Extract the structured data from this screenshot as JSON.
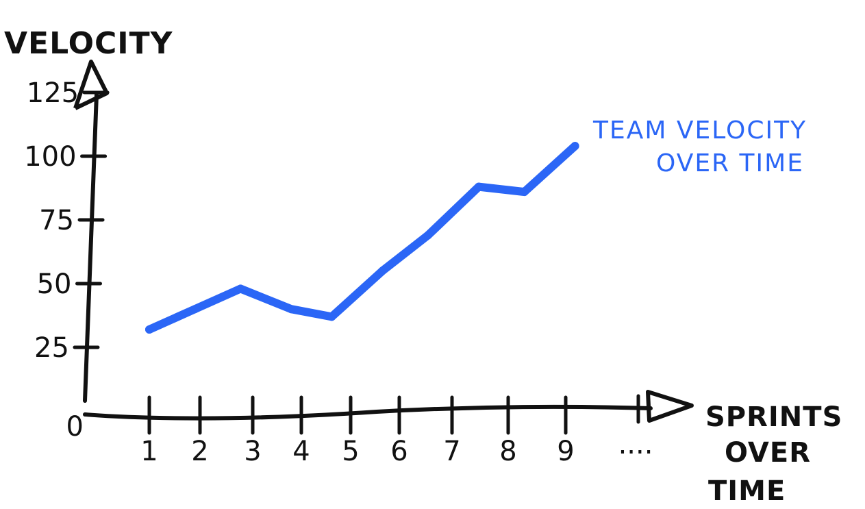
{
  "chart_data": {
    "type": "line",
    "title": "",
    "ylabel": "VELOCITY",
    "xlabel_lines": [
      "SPRINTS",
      "OVER",
      "TIME"
    ],
    "x": [
      1,
      1.9,
      2.8,
      3.8,
      4.6,
      5.6,
      6.5,
      7.5,
      8.4,
      9.4
    ],
    "x_tick_labels": [
      "1",
      "2",
      "3",
      "4",
      "5",
      "6",
      "7",
      "8",
      "9",
      "...."
    ],
    "y_tick_values": [
      0,
      25,
      50,
      75,
      100,
      125
    ],
    "y_tick_labels": [
      "0",
      "25",
      "50",
      "75",
      "100",
      "125"
    ],
    "ylim": [
      0,
      130
    ],
    "series": [
      {
        "values": [
          32,
          40,
          48,
          40,
          37,
          55,
          69,
          88,
          86,
          104
        ],
        "color": "#2b66f6"
      }
    ],
    "annotation_lines": [
      "TEAM VELOCITY",
      "OVER TIME"
    ],
    "annotation_color": "#2b66f6",
    "grid": false
  }
}
